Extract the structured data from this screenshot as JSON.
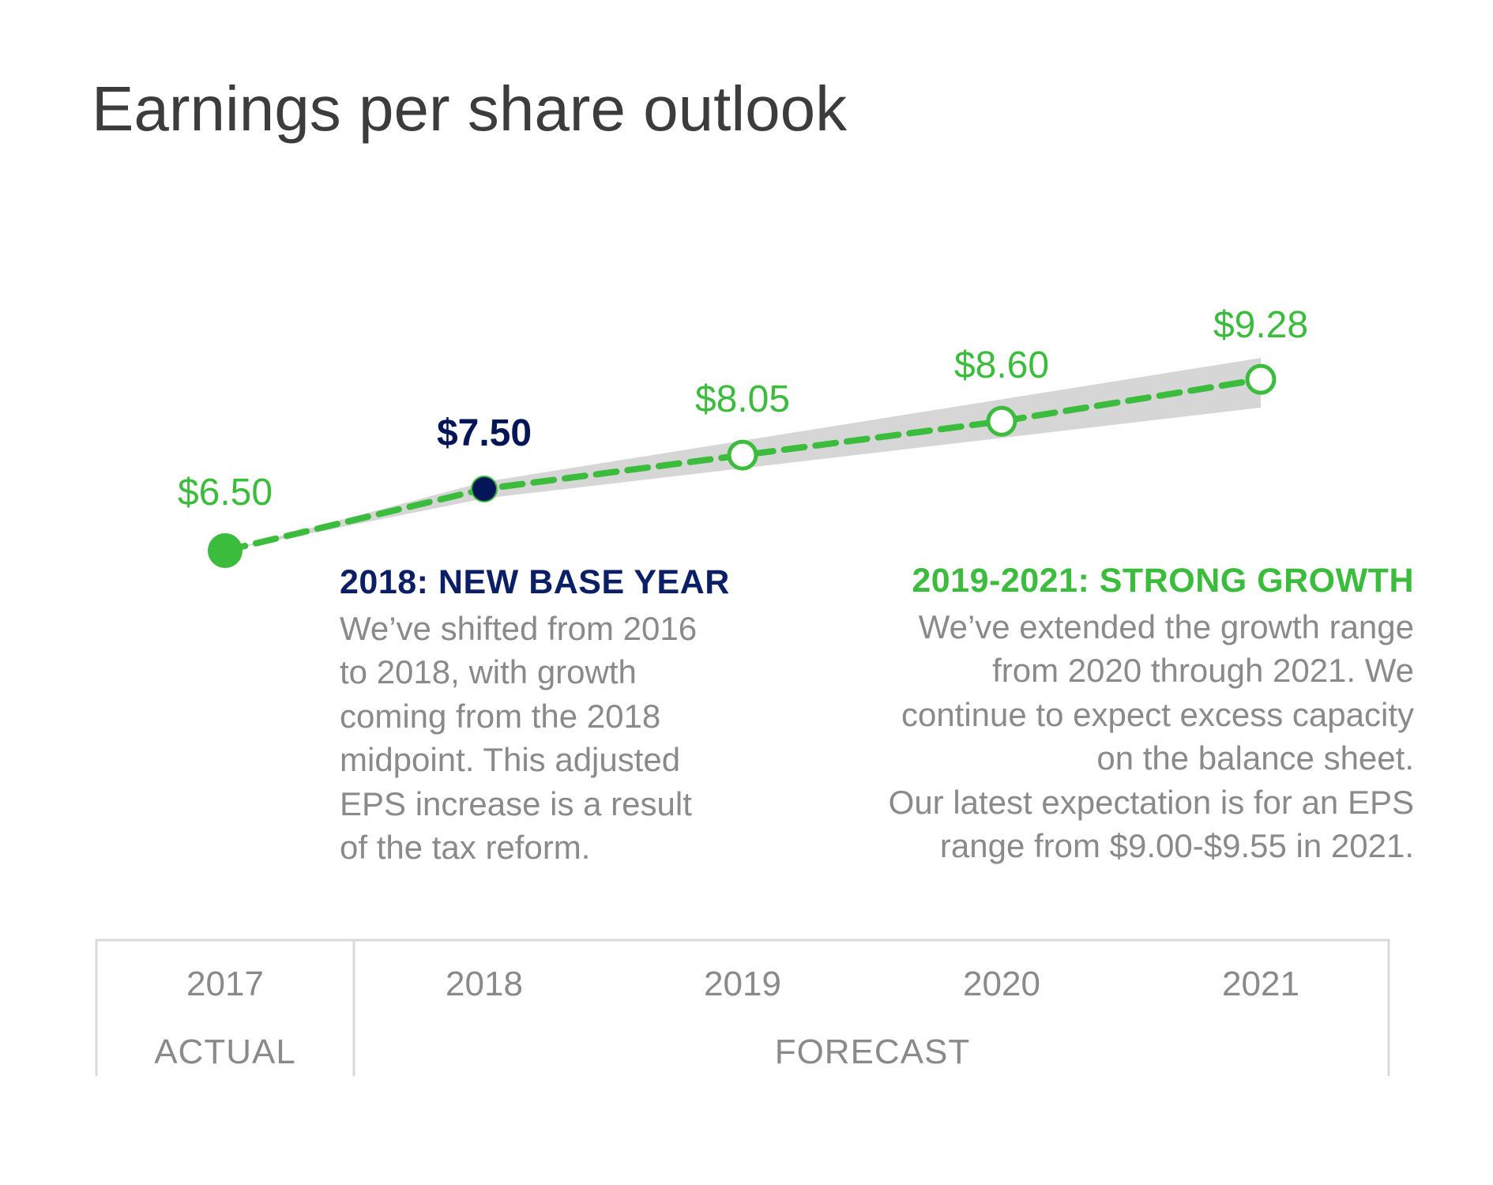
{
  "title": "Earnings per share outlook",
  "colors": {
    "green": "#3cbc3c",
    "navy": "#0b1f66",
    "navy_dark": "#041558",
    "gray_band": "#d6d6d6",
    "text_gray": "#8a8a8a"
  },
  "annotations": {
    "base_year": {
      "title": "2018: NEW BASE YEAR",
      "body": "We’ve shifted from 2016\nto 2018, with growth\ncoming from the 2018\nmidpoint. This adjusted\nEPS increase is a result\nof the tax reform."
    },
    "growth": {
      "title": "2019-2021: STRONG GROWTH",
      "body": "We’ve extended the growth range\nfrom 2020 through 2021. We\ncontinue to expect excess capacity\non the balance sheet.\nOur latest expectation is for an EPS\nrange from $9.00-$9.55 in 2021."
    }
  },
  "chart_data": {
    "type": "line",
    "title": "Earnings per share outlook",
    "categories": [
      "2017",
      "2018",
      "2019",
      "2020",
      "2021"
    ],
    "values": [
      6.5,
      7.5,
      8.05,
      8.6,
      9.28
    ],
    "value_labels": [
      "$6.50",
      "$7.50",
      "$8.05",
      "$8.60",
      "$9.28"
    ],
    "point_status": [
      "actual",
      "actual-base",
      "forecast",
      "forecast",
      "forecast"
    ],
    "range_band": {
      "x": [
        "2018",
        "2021"
      ],
      "low": [
        7.5,
        9.0
      ],
      "high": [
        7.5,
        9.55
      ]
    },
    "period_labels": [
      {
        "label": "ACTUAL",
        "categories": [
          "2017"
        ]
      },
      {
        "label": "FORECAST",
        "categories": [
          "2018",
          "2019",
          "2020",
          "2021"
        ]
      }
    ],
    "xlabel": "",
    "ylabel": "",
    "ylim": [
      4.0,
      10.0
    ],
    "grid": false,
    "legend": "none"
  }
}
